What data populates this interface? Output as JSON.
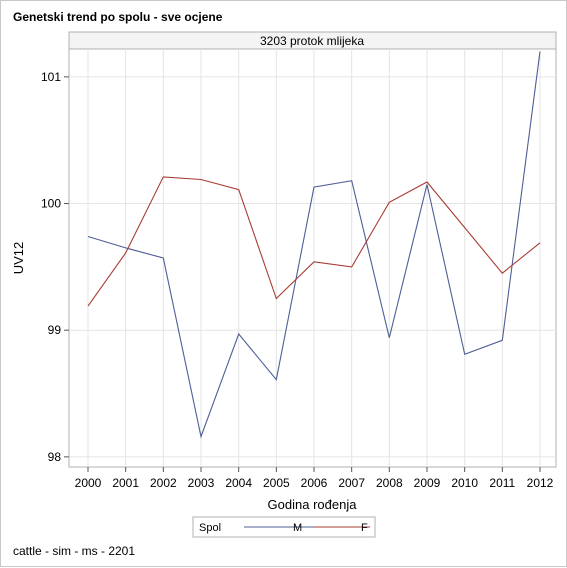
{
  "title": "Genetski trend po spolu - sve ocjene",
  "footnote": "cattle - sim - ms - 2201",
  "chart_data": {
    "type": "line",
    "panel_title": "3203 protok mlijeka",
    "xlabel": "Godina rođenja",
    "ylabel": "UV12",
    "x": [
      2000,
      2001,
      2002,
      2003,
      2004,
      2005,
      2006,
      2007,
      2008,
      2009,
      2010,
      2011,
      2012
    ],
    "x_tick_labels": [
      "2000",
      "2001",
      "2002",
      "2003",
      "2004",
      "2005",
      "2006",
      "2007",
      "2008",
      "2009",
      "2010",
      "2011",
      "2012"
    ],
    "ylim": [
      97.92,
      101.22
    ],
    "y_ticks": [
      98,
      99,
      100,
      101
    ],
    "y_tick_labels": [
      "98",
      "99",
      "100",
      "101"
    ],
    "grid": true,
    "legend_title": "Spol",
    "legend_position": "bottom",
    "series": [
      {
        "name": "M",
        "color": "#4d5f96",
        "values": [
          99.74,
          99.65,
          99.57,
          98.16,
          98.97,
          98.61,
          100.13,
          100.18,
          98.94,
          100.15,
          98.81,
          98.92,
          101.2
        ]
      },
      {
        "name": "F",
        "color": "#a83c33",
        "values": [
          99.19,
          99.61,
          100.21,
          100.19,
          100.11,
          99.25,
          99.54,
          99.5,
          100.01,
          100.17,
          99.81,
          99.45,
          99.69
        ]
      }
    ]
  }
}
